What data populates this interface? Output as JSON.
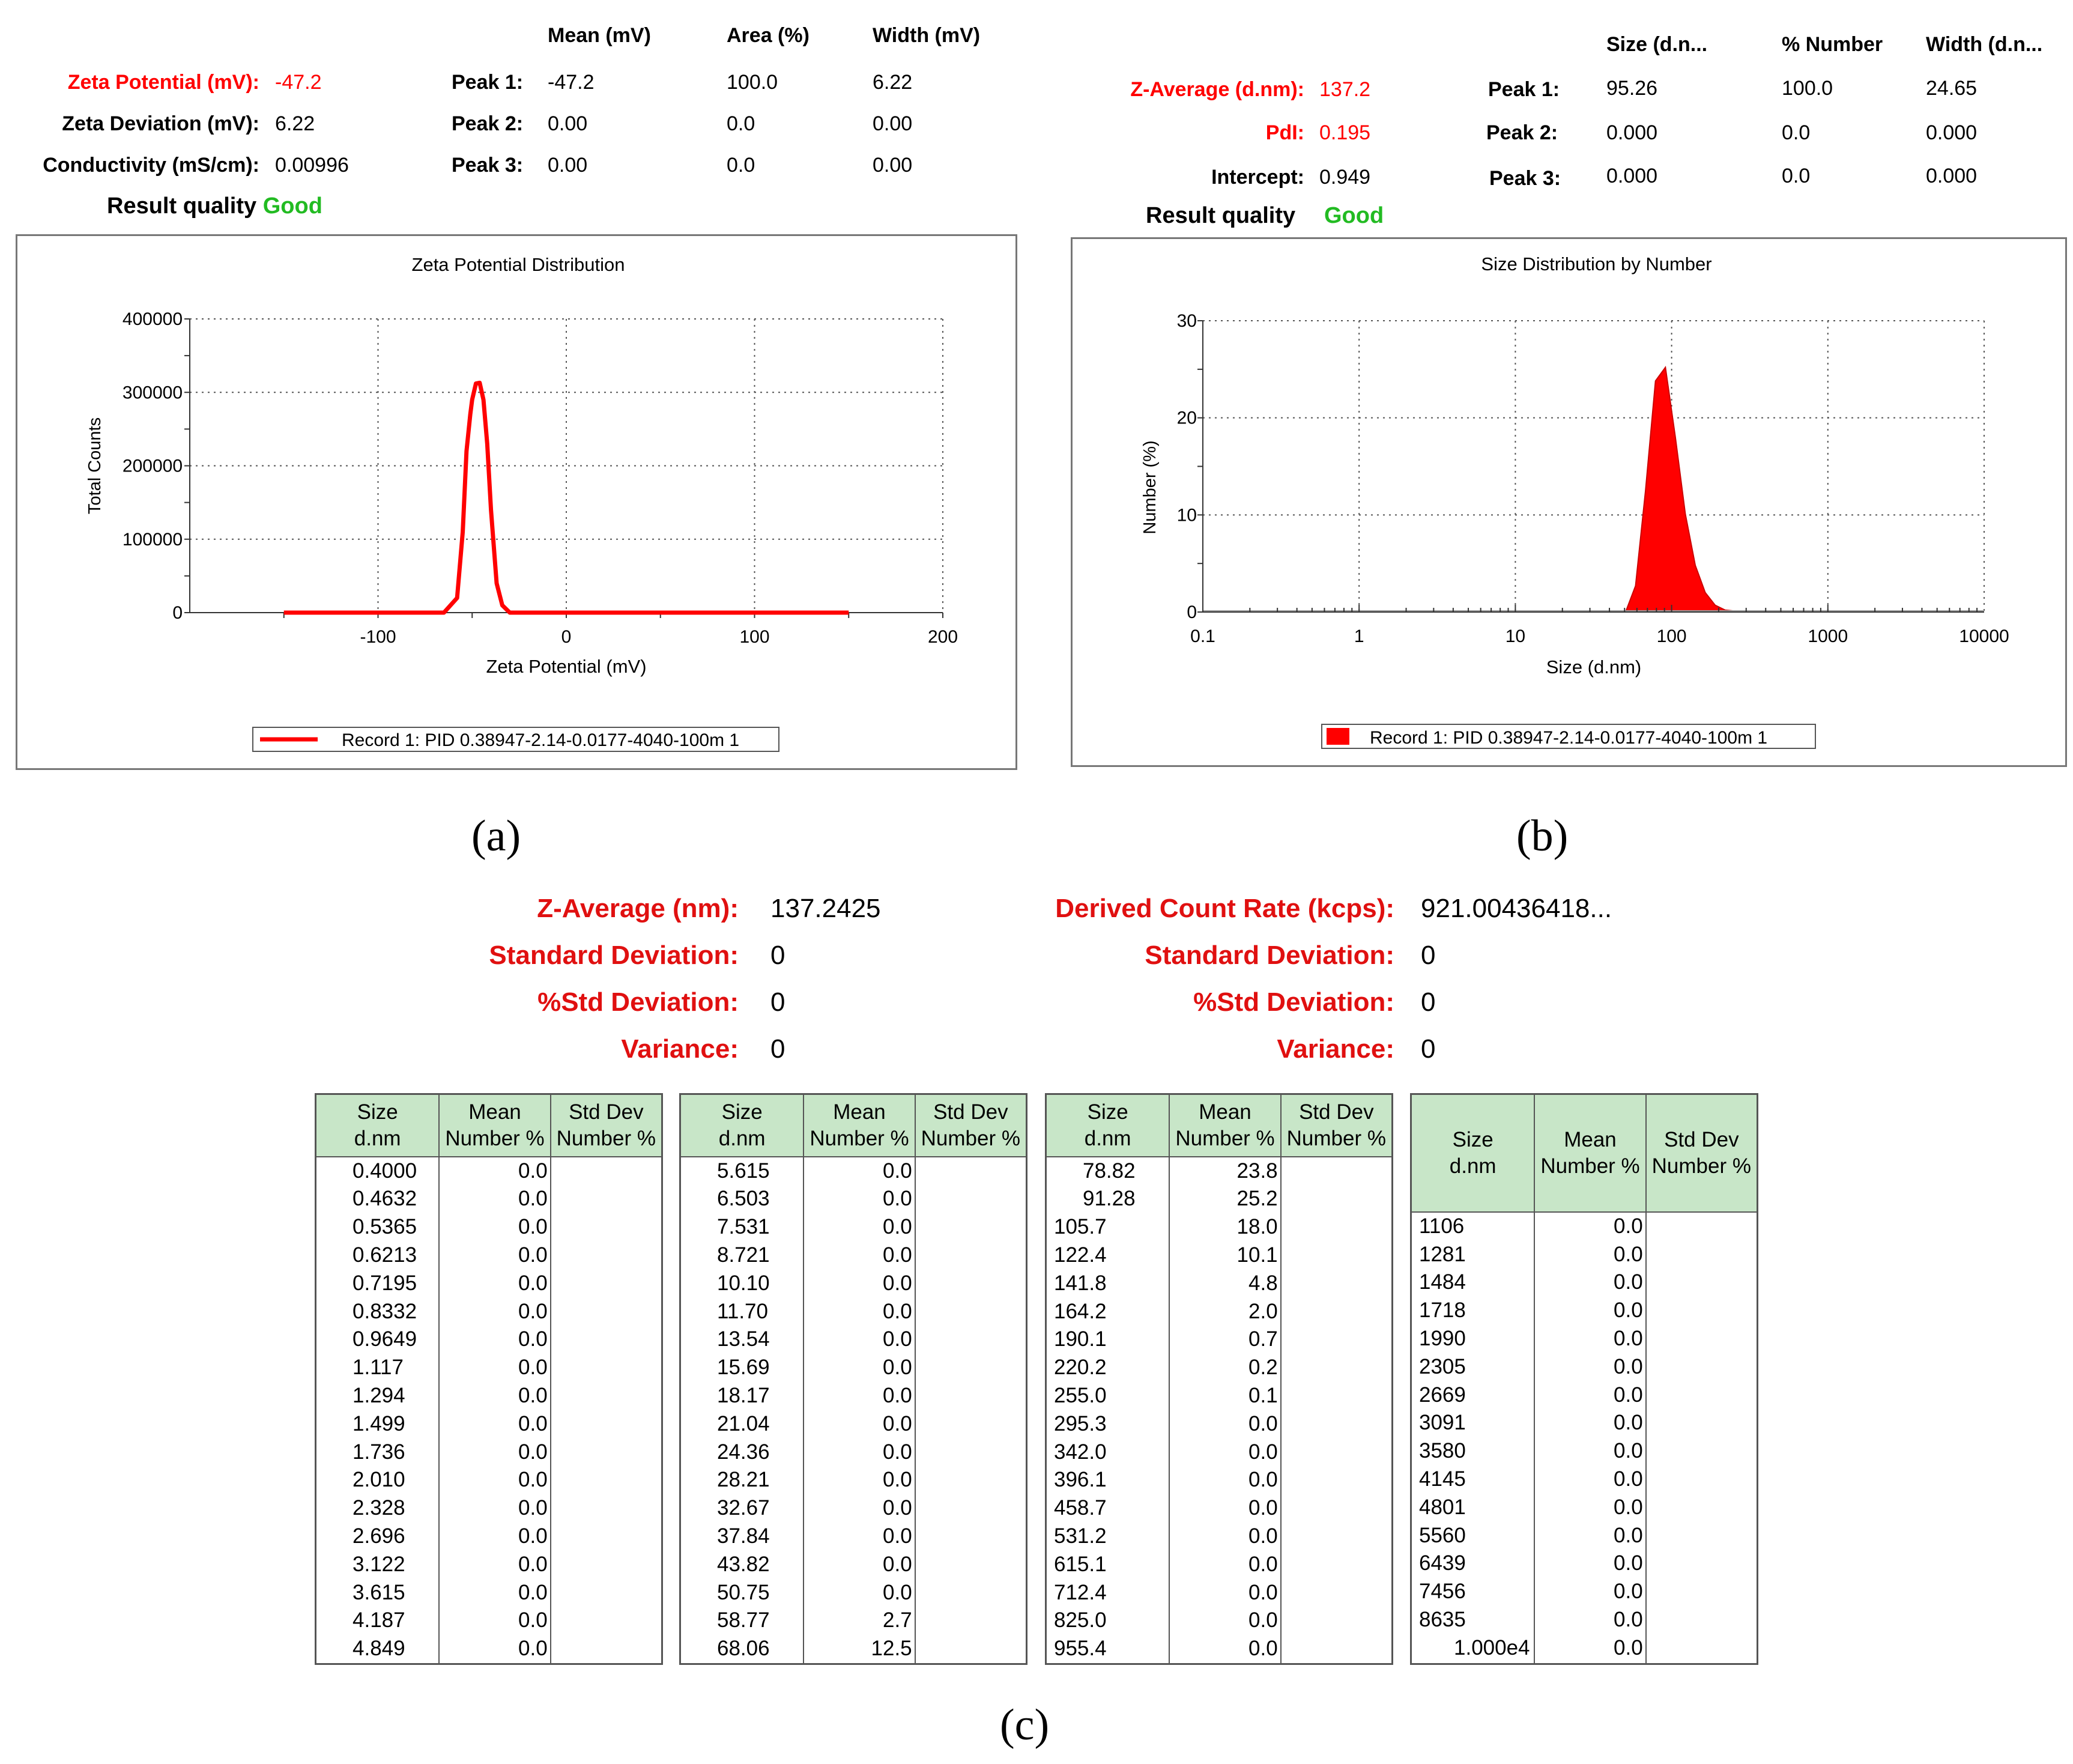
{
  "panel_a": {
    "headers": {
      "mean": "Mean (mV)",
      "area": "Area (%)",
      "width": "Width (mV)"
    },
    "zeta_potential_label": "Zeta Potential (mV):",
    "zeta_potential_value": "-47.2",
    "zeta_deviation_label": "Zeta Deviation (mV):",
    "zeta_deviation_value": "6.22",
    "conductivity_label": "Conductivity (mS/cm):",
    "conductivity_value": "0.00996",
    "result_quality_label": "Result quality",
    "result_quality_value": "Good",
    "peaks": [
      {
        "label": "Peak 1:",
        "mean": "-47.2",
        "area": "100.0",
        "width": "6.22"
      },
      {
        "label": "Peak 2:",
        "mean": "0.00",
        "area": "0.0",
        "width": "0.00"
      },
      {
        "label": "Peak 3:",
        "mean": "0.00",
        "area": "0.0",
        "width": "0.00"
      }
    ],
    "caption": "(a)"
  },
  "panel_b": {
    "headers": {
      "size": "Size (d.n...",
      "number": "% Number",
      "width": "Width (d.n..."
    },
    "z_average_label": "Z-Average (d.nm):",
    "z_average_value": "137.2",
    "pdi_label": "PdI:",
    "pdi_value": "0.195",
    "intercept_label": "Intercept:",
    "intercept_value": "0.949",
    "result_quality_label": "Result quality",
    "result_quality_value": "Good",
    "peaks": [
      {
        "label": "Peak 1:",
        "size": "95.26",
        "number": "100.0",
        "width": "24.65"
      },
      {
        "label": "Peak 2:",
        "size": "0.000",
        "number": "0.0",
        "width": "0.000"
      },
      {
        "label": "Peak 3:",
        "size": "0.000",
        "number": "0.0",
        "width": "0.000"
      }
    ],
    "caption": "(b)"
  },
  "panel_c": {
    "left": {
      "z_average_label": "Z-Average (nm):",
      "z_average_value": "137.2425",
      "std_dev_label": "Standard Deviation:",
      "std_dev_value": "0",
      "pct_std_label": "%Std Deviation:",
      "pct_std_value": "0",
      "variance_label": "Variance:",
      "variance_value": "0"
    },
    "right": {
      "dcr_label": "Derived Count Rate (kcps):",
      "dcr_value": "921.00436418...",
      "std_dev_label": "Standard Deviation:",
      "std_dev_value": "0",
      "pct_std_label": "%Std Deviation:",
      "pct_std_value": "0",
      "variance_label": "Variance:",
      "variance_value": "0"
    },
    "table_headers": {
      "size_1": "Size",
      "size_2": "d.nm",
      "mean_1": "Mean",
      "mean_2": "Number %",
      "std_1": "Std Dev",
      "std_2": "Number %"
    },
    "caption": "(c)"
  },
  "chart_data": [
    {
      "type": "line",
      "title": "Zeta Potential Distribution",
      "xlabel": "Zeta Potential (mV)",
      "ylabel": "Total Counts",
      "xlim": [
        -200,
        200
      ],
      "ylim": [
        0,
        400000
      ],
      "xticks": [
        "-100",
        "0",
        "100",
        "200"
      ],
      "yticks": [
        "0",
        "100000",
        "200000",
        "300000",
        "400000"
      ],
      "grid": true,
      "legend": "Record 1: PID 0.38947-2.14-0.0177-4040-100m 1",
      "color": "#ff0000",
      "x": [
        -150,
        -65,
        -58,
        -55,
        -53,
        -51,
        -50,
        -48,
        -46,
        -44,
        -42,
        -40,
        -37,
        -34,
        -30,
        -25,
        150
      ],
      "y": [
        0,
        0,
        20000,
        110000,
        220000,
        270000,
        290000,
        312000,
        313000,
        290000,
        230000,
        140000,
        40000,
        10000,
        0,
        0,
        0
      ]
    },
    {
      "type": "area",
      "title": "Size Distribution by Number",
      "xlabel": "Size (d.nm)",
      "ylabel": "Number (%)",
      "xscale": "log",
      "xlim": [
        0.1,
        10000
      ],
      "ylim": [
        0,
        30
      ],
      "xticks": [
        "0.1",
        "1",
        "10",
        "100",
        "1000",
        "10000"
      ],
      "yticks": [
        "0",
        "10",
        "20",
        "30"
      ],
      "grid": true,
      "legend": "Record 1: PID 0.38947-2.14-0.0177-4040-100m 1",
      "color": "#ff0000",
      "x": [
        50.75,
        58.77,
        68.06,
        78.82,
        91.28,
        105.7,
        122.4,
        141.8,
        164.2,
        190.1,
        220.2,
        255.0,
        295.3
      ],
      "y": [
        0.0,
        2.7,
        12.5,
        23.8,
        25.2,
        18.0,
        10.1,
        4.8,
        2.0,
        0.7,
        0.2,
        0.1,
        0.0
      ]
    },
    {
      "type": "table",
      "columns": [
        "Size d.nm",
        "Mean Number %",
        "Std Dev Number %"
      ],
      "tables": [
        {
          "rows": [
            [
              "0.4000",
              "0.0"
            ],
            [
              "0.4632",
              "0.0"
            ],
            [
              "0.5365",
              "0.0"
            ],
            [
              "0.6213",
              "0.0"
            ],
            [
              "0.7195",
              "0.0"
            ],
            [
              "0.8332",
              "0.0"
            ],
            [
              "0.9649",
              "0.0"
            ],
            [
              "1.117",
              "0.0"
            ],
            [
              "1.294",
              "0.0"
            ],
            [
              "1.499",
              "0.0"
            ],
            [
              "1.736",
              "0.0"
            ],
            [
              "2.010",
              "0.0"
            ],
            [
              "2.328",
              "0.0"
            ],
            [
              "2.696",
              "0.0"
            ],
            [
              "3.122",
              "0.0"
            ],
            [
              "3.615",
              "0.0"
            ],
            [
              "4.187",
              "0.0"
            ],
            [
              "4.849",
              "0.0"
            ]
          ]
        },
        {
          "rows": [
            [
              "5.615",
              "0.0"
            ],
            [
              "6.503",
              "0.0"
            ],
            [
              "7.531",
              "0.0"
            ],
            [
              "8.721",
              "0.0"
            ],
            [
              "10.10",
              "0.0"
            ],
            [
              "11.70",
              "0.0"
            ],
            [
              "13.54",
              "0.0"
            ],
            [
              "15.69",
              "0.0"
            ],
            [
              "18.17",
              "0.0"
            ],
            [
              "21.04",
              "0.0"
            ],
            [
              "24.36",
              "0.0"
            ],
            [
              "28.21",
              "0.0"
            ],
            [
              "32.67",
              "0.0"
            ],
            [
              "37.84",
              "0.0"
            ],
            [
              "43.82",
              "0.0"
            ],
            [
              "50.75",
              "0.0"
            ],
            [
              "58.77",
              "2.7"
            ],
            [
              "68.06",
              "12.5"
            ]
          ]
        },
        {
          "rows": [
            [
              "78.82",
              "23.8"
            ],
            [
              "91.28",
              "25.2"
            ],
            [
              "105.7",
              "18.0"
            ],
            [
              "122.4",
              "10.1"
            ],
            [
              "141.8",
              "4.8"
            ],
            [
              "164.2",
              "2.0"
            ],
            [
              "190.1",
              "0.7"
            ],
            [
              "220.2",
              "0.2"
            ],
            [
              "255.0",
              "0.1"
            ],
            [
              "295.3",
              "0.0"
            ],
            [
              "342.0",
              "0.0"
            ],
            [
              "396.1",
              "0.0"
            ],
            [
              "458.7",
              "0.0"
            ],
            [
              "531.2",
              "0.0"
            ],
            [
              "615.1",
              "0.0"
            ],
            [
              "712.4",
              "0.0"
            ],
            [
              "825.0",
              "0.0"
            ],
            [
              "955.4",
              "0.0"
            ]
          ]
        },
        {
          "rows": [
            [
              "1106",
              "0.0"
            ],
            [
              "1281",
              "0.0"
            ],
            [
              "1484",
              "0.0"
            ],
            [
              "1718",
              "0.0"
            ],
            [
              "1990",
              "0.0"
            ],
            [
              "2305",
              "0.0"
            ],
            [
              "2669",
              "0.0"
            ],
            [
              "3091",
              "0.0"
            ],
            [
              "3580",
              "0.0"
            ],
            [
              "4145",
              "0.0"
            ],
            [
              "4801",
              "0.0"
            ],
            [
              "5560",
              "0.0"
            ],
            [
              "6439",
              "0.0"
            ],
            [
              "7456",
              "0.0"
            ],
            [
              "8635",
              "0.0"
            ],
            [
              "1.000e4",
              "0.0"
            ]
          ]
        }
      ]
    }
  ]
}
